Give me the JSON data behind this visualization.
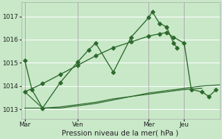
{
  "background_color": "#c8e8c8",
  "plot_bg": "#c8e8c8",
  "grid_color": "#ffffff",
  "line_color": "#2d6a2d",
  "title": "Pression niveau de la mer( hPa )",
  "ylabel_ticks": [
    1013,
    1014,
    1015,
    1016,
    1017
  ],
  "ylim": [
    1012.6,
    1017.6
  ],
  "x_tick_labels": [
    "Mar",
    "Ven",
    "Mer",
    "Jeu"
  ],
  "x_tick_positions": [
    1,
    16,
    36,
    46
  ],
  "xlim": [
    0,
    56
  ],
  "series1_x": [
    1,
    3,
    6,
    11,
    16,
    19,
    21,
    26,
    31,
    36,
    37,
    39,
    41,
    43,
    44
  ],
  "series1_y": [
    1015.1,
    1013.85,
    1013.05,
    1014.15,
    1015.05,
    1015.55,
    1015.85,
    1014.6,
    1016.1,
    1016.95,
    1017.2,
    1016.7,
    1016.55,
    1015.85,
    1015.65
  ],
  "series2_x": [
    1,
    6,
    11,
    16,
    21,
    26,
    31,
    36,
    41,
    46,
    51,
    56
  ],
  "series2_y": [
    1013.75,
    1013.05,
    1013.05,
    1013.15,
    1013.25,
    1013.4,
    1013.55,
    1013.7,
    1013.8,
    1013.9,
    1014.0,
    1014.05
  ],
  "series3_x": [
    1,
    6,
    11,
    16,
    21,
    26,
    31,
    36,
    41,
    46,
    51
  ],
  "series3_y": [
    1013.05,
    1013.05,
    1013.1,
    1013.2,
    1013.3,
    1013.45,
    1013.55,
    1013.65,
    1013.75,
    1013.85,
    1013.9
  ],
  "series4_x": [
    1,
    6,
    11,
    16,
    21,
    26,
    31,
    36,
    39,
    41,
    43,
    46,
    48,
    51,
    53,
    55
  ],
  "series4_y": [
    1013.75,
    1014.1,
    1014.5,
    1014.9,
    1015.3,
    1015.65,
    1015.9,
    1016.15,
    1016.25,
    1016.3,
    1016.1,
    1015.85,
    1013.85,
    1013.75,
    1013.55,
    1013.85
  ],
  "vlines": [
    1,
    16,
    36,
    46
  ],
  "vline_color": "#999999"
}
